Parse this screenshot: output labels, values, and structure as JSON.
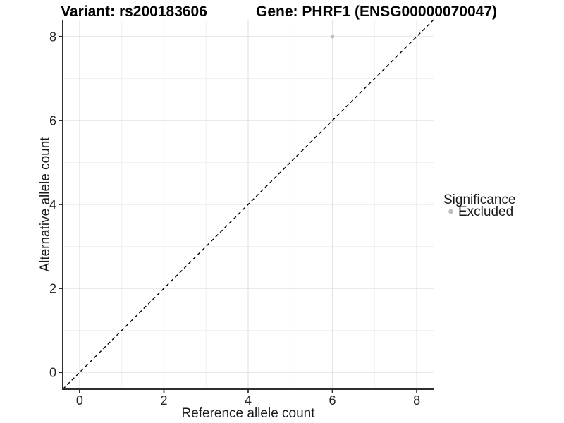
{
  "header": {
    "variant_title": "Variant: rs200183606",
    "gene_title": "Gene: PHRF1 (ENSG00000070047)"
  },
  "legend": {
    "title": "Significance",
    "position": "right",
    "items": [
      {
        "label": "Excluded",
        "color": "#bebebe"
      }
    ]
  },
  "chart_data": {
    "type": "scatter",
    "title": "Variant: rs200183606  |  Gene: PHRF1 (ENSG00000070047)",
    "xlabel": "Reference allele count",
    "ylabel": "Alternative allele count",
    "xlim": [
      -0.4,
      8.4
    ],
    "ylim": [
      -0.4,
      8.4
    ],
    "x_ticks": [
      0,
      2,
      4,
      6,
      8
    ],
    "y_ticks": [
      0,
      2,
      4,
      6,
      8
    ],
    "x_minor_gridlines": [
      1,
      3,
      5,
      7
    ],
    "y_minor_gridlines": [
      1,
      3,
      5,
      7
    ],
    "grid": true,
    "legend_position": "right",
    "series": [
      {
        "name": "Excluded",
        "color": "#bebebe",
        "point_radius": 2.7,
        "points": [
          [
            6,
            8
          ]
        ]
      }
    ],
    "reference_line": {
      "type": "identity",
      "equation": "y = x",
      "style": "dashed",
      "color": "#000000"
    }
  },
  "colors": {
    "background": "#ffffff",
    "grid_major": "#e3e3e3",
    "grid_minor": "#f0f0f0",
    "axis_line": "#2f2f2f",
    "tick_mark": "#2f2f2f",
    "dashed_line": "#000000",
    "point": "#bebebe",
    "title_text": "#000000",
    "tick_text": "#262626"
  }
}
